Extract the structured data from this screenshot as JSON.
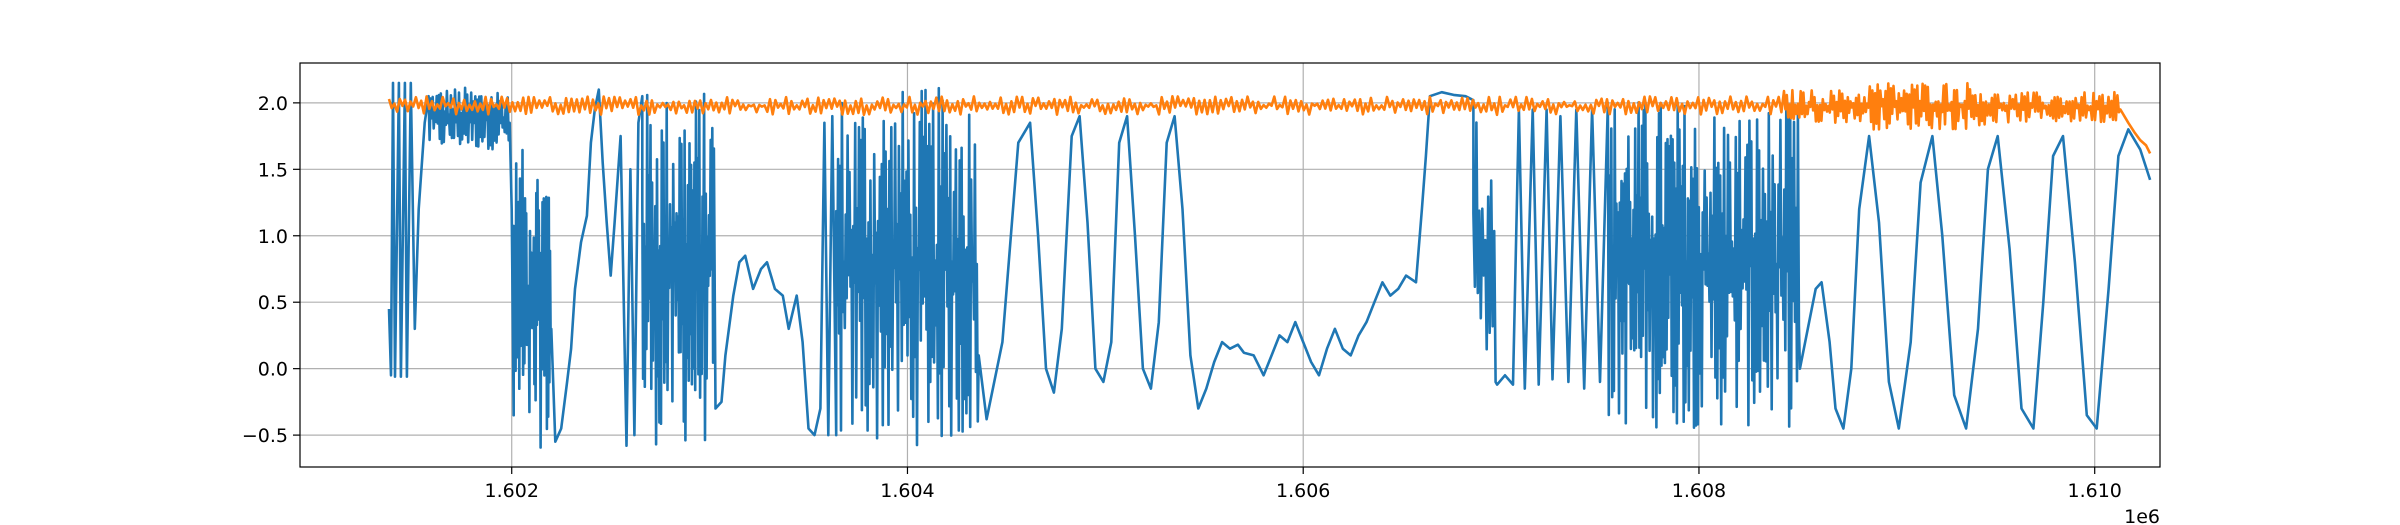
{
  "chart_data": {
    "type": "line",
    "title": "",
    "xlabel": "",
    "ylabel": "",
    "x_offset_label": "1e6",
    "xlim": [
      1.60093,
      1.61033
    ],
    "ylim": [
      -0.74,
      2.3
    ],
    "grid": true,
    "legend": "none",
    "x_ticks": [
      {
        "value": 1.602,
        "label": "1.602"
      },
      {
        "value": 1.604,
        "label": "1.604"
      },
      {
        "value": 1.606,
        "label": "1.606"
      },
      {
        "value": 1.608,
        "label": "1.608"
      },
      {
        "value": 1.61,
        "label": "1.610"
      }
    ],
    "y_ticks": [
      {
        "value": -0.5,
        "label": "−0.5"
      },
      {
        "value": 0.0,
        "label": "0.0"
      },
      {
        "value": 0.5,
        "label": "0.5"
      },
      {
        "value": 1.0,
        "label": "1.0"
      },
      {
        "value": 1.5,
        "label": "1.5"
      },
      {
        "value": 2.0,
        "label": "2.0"
      }
    ],
    "series": [
      {
        "color": "#1f77b4",
        "segments": [
          {
            "kind": "points",
            "points": [
              [
                1.60138,
                0.45
              ],
              [
                1.60139,
                -0.05
              ],
              [
                1.6014,
                2.15
              ],
              [
                1.60141,
                -0.06
              ],
              [
                1.60143,
                2.15
              ],
              [
                1.60144,
                -0.06
              ],
              [
                1.60146,
                2.15
              ],
              [
                1.60147,
                -0.06
              ],
              [
                1.60149,
                2.15
              ],
              [
                1.60151,
                0.3
              ],
              [
                1.60153,
                1.2
              ],
              [
                1.60156,
                1.85
              ],
              [
                1.60158,
                2.05
              ]
            ]
          },
          {
            "kind": "noise",
            "x0": 1.60158,
            "x1": 1.60199,
            "lo": 1.65,
            "hi": 2.12,
            "n": 80
          },
          {
            "kind": "points",
            "points": [
              [
                1.60199,
                1.85
              ],
              [
                1.602,
                1.2
              ],
              [
                1.60201,
                -0.35
              ]
            ]
          },
          {
            "kind": "noise",
            "x0": 1.60201,
            "x1": 1.6022,
            "lo": -0.6,
            "hi": 1.65,
            "n": 60
          },
          {
            "kind": "points",
            "points": [
              [
                1.6022,
                0.3
              ],
              [
                1.60222,
                -0.55
              ],
              [
                1.60225,
                -0.45
              ],
              [
                1.60228,
                -0.1
              ],
              [
                1.6023,
                0.15
              ],
              [
                1.60232,
                0.6
              ],
              [
                1.60235,
                0.95
              ],
              [
                1.60238,
                1.15
              ],
              [
                1.6024,
                1.7
              ],
              [
                1.60242,
                1.95
              ],
              [
                1.60244,
                2.1
              ],
              [
                1.60246,
                1.55
              ],
              [
                1.60248,
                1.1
              ],
              [
                1.6025,
                0.7
              ],
              [
                1.60252,
                1.1
              ],
              [
                1.60255,
                1.75
              ],
              [
                1.60258,
                -0.58
              ],
              [
                1.6026,
                1.5
              ],
              [
                1.60262,
                -0.5
              ],
              [
                1.60264,
                1.85
              ],
              [
                1.60266,
                2.05
              ]
            ]
          },
          {
            "kind": "noise",
            "x0": 1.60266,
            "x1": 1.60303,
            "lo": -0.58,
            "hi": 2.1,
            "n": 90
          },
          {
            "kind": "points",
            "points": [
              [
                1.60303,
                -0.3
              ],
              [
                1.60306,
                -0.25
              ],
              [
                1.60308,
                0.1
              ],
              [
                1.60312,
                0.55
              ],
              [
                1.60315,
                0.8
              ],
              [
                1.60318,
                0.85
              ],
              [
                1.60322,
                0.6
              ],
              [
                1.60326,
                0.75
              ],
              [
                1.60329,
                0.8
              ],
              [
                1.60333,
                0.6
              ],
              [
                1.60337,
                0.55
              ],
              [
                1.6034,
                0.3
              ],
              [
                1.60344,
                0.55
              ],
              [
                1.60347,
                0.2
              ],
              [
                1.6035,
                -0.45
              ],
              [
                1.60353,
                -0.5
              ],
              [
                1.60356,
                -0.3
              ],
              [
                1.60358,
                1.85
              ],
              [
                1.6036,
                -0.5
              ],
              [
                1.60362,
                1.9
              ],
              [
                1.60364,
                -0.5
              ]
            ]
          },
          {
            "kind": "noise",
            "x0": 1.60364,
            "x1": 1.60436,
            "lo": -0.58,
            "hi": 2.12,
            "n": 150
          },
          {
            "kind": "points",
            "points": [
              [
                1.60436,
                0.1
              ],
              [
                1.6044,
                -0.38
              ],
              [
                1.60448,
                0.2
              ],
              [
                1.60456,
                1.7
              ],
              [
                1.60462,
                1.85
              ],
              [
                1.60466,
                1.0
              ],
              [
                1.6047,
                0.0
              ],
              [
                1.60474,
                -0.18
              ],
              [
                1.60478,
                0.3
              ],
              [
                1.60483,
                1.75
              ],
              [
                1.60487,
                1.9
              ],
              [
                1.60491,
                1.1
              ],
              [
                1.60495,
                0.0
              ],
              [
                1.60499,
                -0.1
              ],
              [
                1.60503,
                0.2
              ],
              [
                1.60507,
                1.7
              ],
              [
                1.60511,
                1.9
              ],
              [
                1.60515,
                1.0
              ],
              [
                1.60519,
                0.0
              ],
              [
                1.60523,
                -0.15
              ],
              [
                1.60527,
                0.35
              ],
              [
                1.60531,
                1.7
              ],
              [
                1.60535,
                1.9
              ],
              [
                1.60539,
                1.2
              ],
              [
                1.60543,
                0.1
              ],
              [
                1.60547,
                -0.3
              ],
              [
                1.60551,
                -0.15
              ],
              [
                1.60555,
                0.05
              ],
              [
                1.60559,
                0.2
              ],
              [
                1.60563,
                0.15
              ],
              [
                1.60567,
                0.18
              ],
              [
                1.6057,
                0.12
              ],
              [
                1.60575,
                0.1
              ],
              [
                1.6058,
                -0.05
              ],
              [
                1.60584,
                0.1
              ],
              [
                1.60588,
                0.25
              ],
              [
                1.60592,
                0.2
              ],
              [
                1.60596,
                0.35
              ],
              [
                1.606,
                0.2
              ],
              [
                1.60604,
                0.05
              ],
              [
                1.60608,
                -0.05
              ],
              [
                1.60612,
                0.15
              ],
              [
                1.60616,
                0.3
              ],
              [
                1.6062,
                0.15
              ],
              [
                1.60624,
                0.1
              ],
              [
                1.60628,
                0.25
              ],
              [
                1.60632,
                0.35
              ],
              [
                1.60636,
                0.5
              ],
              [
                1.6064,
                0.65
              ],
              [
                1.60644,
                0.55
              ],
              [
                1.60648,
                0.6
              ],
              [
                1.60652,
                0.7
              ],
              [
                1.60657,
                0.65
              ],
              [
                1.6066,
                1.2
              ],
              [
                1.60662,
                1.6
              ],
              [
                1.60664,
                2.05
              ],
              [
                1.6067,
                2.08
              ],
              [
                1.60676,
                2.06
              ],
              [
                1.60682,
                2.05
              ],
              [
                1.60686,
                2.02
              ]
            ]
          },
          {
            "kind": "noise",
            "x0": 1.60686,
            "x1": 1.60698,
            "lo": -0.15,
            "hi": 2.05,
            "n": 16
          },
          {
            "kind": "points",
            "points": [
              [
                1.60698,
                -0.12
              ],
              [
                1.60702,
                -0.05
              ],
              [
                1.60706,
                -0.12
              ],
              [
                1.60709,
                1.95
              ],
              [
                1.60712,
                -0.15
              ],
              [
                1.60716,
                1.95
              ],
              [
                1.60719,
                -0.12
              ],
              [
                1.60723,
                1.95
              ],
              [
                1.60726,
                -0.08
              ],
              [
                1.6073,
                1.9
              ],
              [
                1.60734,
                -0.1
              ],
              [
                1.60738,
                1.95
              ],
              [
                1.60742,
                -0.15
              ],
              [
                1.60746,
                1.95
              ],
              [
                1.6075,
                -0.1
              ],
              [
                1.60754,
                2.0
              ]
            ]
          },
          {
            "kind": "noise",
            "x0": 1.60754,
            "x1": 1.60797,
            "lo": -0.45,
            "hi": 2.05,
            "n": 100
          },
          {
            "kind": "noise",
            "x0": 1.60797,
            "x1": 1.60851,
            "lo": -0.45,
            "hi": 2.0,
            "n": 110
          },
          {
            "kind": "points",
            "points": [
              [
                1.60851,
                0.0
              ],
              [
                1.60855,
                0.3
              ],
              [
                1.60859,
                0.6
              ],
              [
                1.60862,
                0.65
              ],
              [
                1.60866,
                0.2
              ],
              [
                1.60869,
                -0.3
              ],
              [
                1.60873,
                -0.45
              ],
              [
                1.60877,
                0.0
              ],
              [
                1.60881,
                1.2
              ],
              [
                1.60886,
                1.75
              ],
              [
                1.60891,
                1.1
              ],
              [
                1.60896,
                -0.1
              ],
              [
                1.60901,
                -0.45
              ],
              [
                1.60907,
                0.2
              ],
              [
                1.60912,
                1.4
              ],
              [
                1.60918,
                1.75
              ],
              [
                1.60923,
                1.0
              ],
              [
                1.60929,
                -0.2
              ],
              [
                1.60935,
                -0.45
              ],
              [
                1.60941,
                0.3
              ],
              [
                1.60946,
                1.5
              ],
              [
                1.60951,
                1.75
              ],
              [
                1.60957,
                0.9
              ],
              [
                1.60963,
                -0.3
              ],
              [
                1.60969,
                -0.45
              ],
              [
                1.60974,
                0.5
              ],
              [
                1.60979,
                1.6
              ],
              [
                1.60984,
                1.75
              ],
              [
                1.6099,
                0.8
              ],
              [
                1.60996,
                -0.35
              ],
              [
                1.61001,
                -0.45
              ],
              [
                1.61007,
                0.6
              ],
              [
                1.61012,
                1.6
              ],
              [
                1.61017,
                1.8
              ],
              [
                1.61023,
                1.65
              ],
              [
                1.61028,
                1.42
              ]
            ]
          }
        ]
      },
      {
        "color": "#ff7f0e",
        "segments": [
          {
            "kind": "noise",
            "x0": 1.60138,
            "x1": 1.60843,
            "lo": 1.91,
            "hi": 2.05,
            "n": 520
          },
          {
            "kind": "noise",
            "x0": 1.60843,
            "x1": 1.60885,
            "lo": 1.85,
            "hi": 2.1,
            "n": 60
          },
          {
            "kind": "noise",
            "x0": 1.60885,
            "x1": 1.60945,
            "lo": 1.8,
            "hi": 2.16,
            "n": 90
          },
          {
            "kind": "noise",
            "x0": 1.60945,
            "x1": 1.61013,
            "lo": 1.85,
            "hi": 2.08,
            "n": 90
          },
          {
            "kind": "points",
            "points": [
              [
                1.61013,
                1.95
              ],
              [
                1.61017,
                1.85
              ],
              [
                1.6102,
                1.78
              ],
              [
                1.61023,
                1.72
              ],
              [
                1.61026,
                1.68
              ],
              [
                1.61028,
                1.62
              ]
            ]
          }
        ]
      }
    ]
  }
}
